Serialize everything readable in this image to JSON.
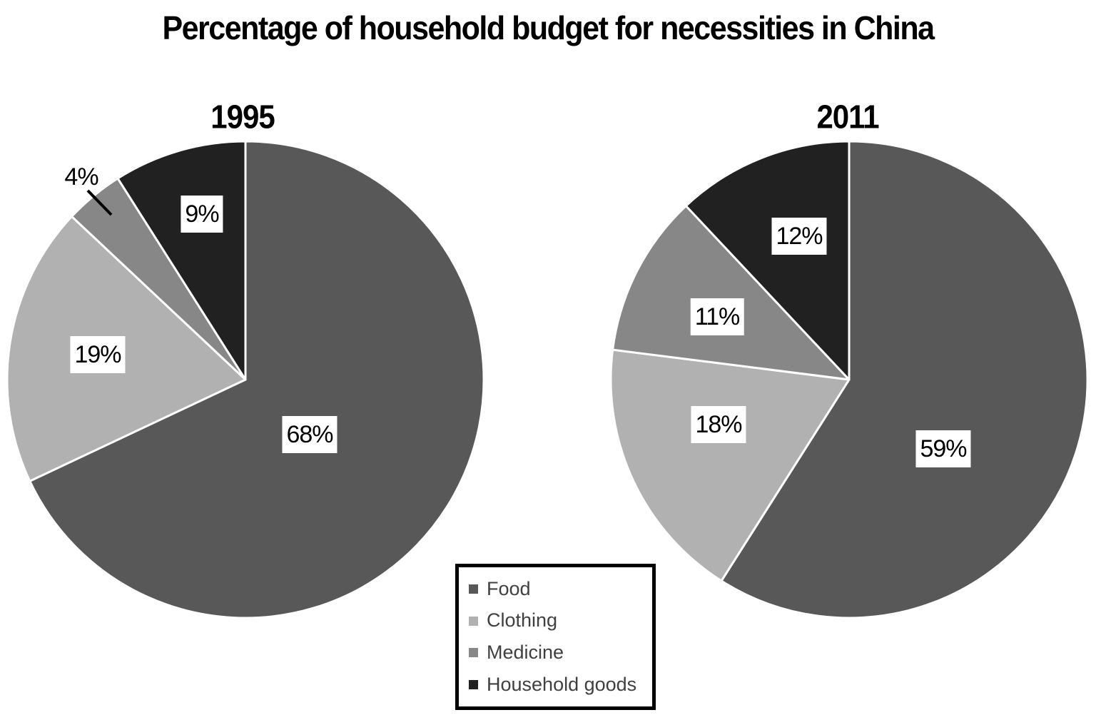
{
  "title": "Percentage of household budget for necessities in China",
  "chart_data": [
    {
      "type": "pie",
      "title": "1995",
      "categories": [
        "Food",
        "Clothing",
        "Medicine",
        "Household goods"
      ],
      "values": [
        68,
        19,
        4,
        9
      ],
      "percent_labels": [
        "68%",
        "19%",
        "4%",
        "9%"
      ],
      "colors": [
        "#585858",
        "#b1b1b1",
        "#878787",
        "#212121"
      ],
      "start_angle_deg": 0,
      "direction": "clockwise",
      "slice_border_color": "#ffffff"
    },
    {
      "type": "pie",
      "title": "2011",
      "categories": [
        "Food",
        "Clothing",
        "Medicine",
        "Household goods"
      ],
      "values": [
        59,
        18,
        11,
        12
      ],
      "percent_labels": [
        "59%",
        "18%",
        "11%",
        "12%"
      ],
      "colors": [
        "#585858",
        "#b1b1b1",
        "#878787",
        "#212121"
      ],
      "start_angle_deg": 0,
      "direction": "clockwise",
      "slice_border_color": "#ffffff"
    }
  ],
  "legend": {
    "position": "bottom-center",
    "items": [
      {
        "label": "Food",
        "color": "#585858"
      },
      {
        "label": "Clothing",
        "color": "#b1b1b1"
      },
      {
        "label": "Medicine",
        "color": "#878787"
      },
      {
        "label": "Household goods",
        "color": "#212121"
      }
    ]
  }
}
